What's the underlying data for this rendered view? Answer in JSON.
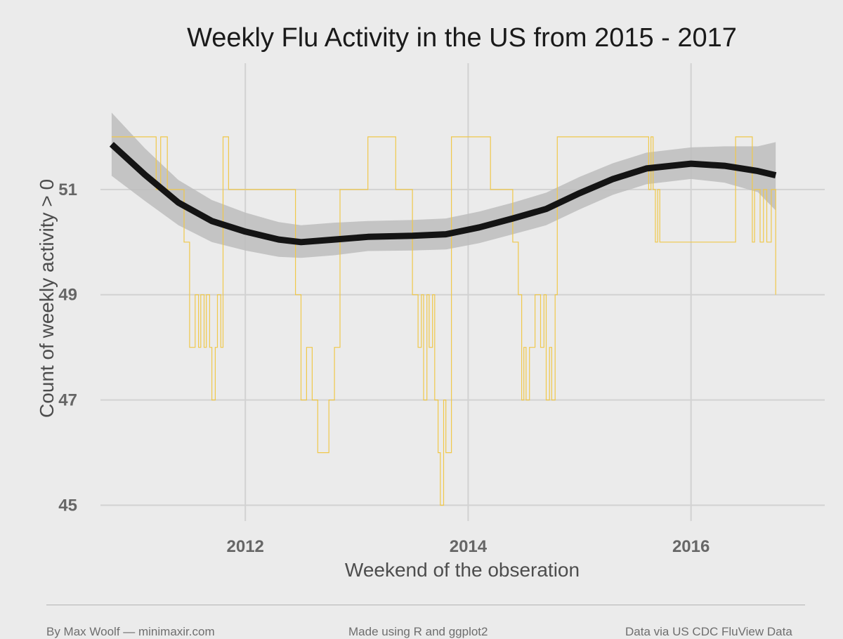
{
  "chart_data": {
    "type": "line",
    "title": "Weekly Flu Activity in the US from 2015 - 2017",
    "xlabel": "Weekend of the obseration",
    "ylabel": "Count of weekly activity > 0",
    "xlim": [
      2010.7,
      2017.2
    ],
    "ylim": [
      44.7,
      53.4
    ],
    "x_ticks": [
      2012,
      2014,
      2016
    ],
    "y_ticks": [
      45,
      47,
      49,
      51
    ],
    "grid": true,
    "colors": {
      "raw": "#f0c84a",
      "smooth": "#141414",
      "ribbon": "#bdbdbd",
      "background": "#ebebeb",
      "grid": "#d2d2d2"
    },
    "series": [
      {
        "kind": "raw",
        "x": [
          2010.8,
          2011.18,
          2011.2,
          2011.24,
          2011.26,
          2011.3,
          2011.45,
          2011.5,
          2011.55,
          2011.58,
          2011.6,
          2011.63,
          2011.65,
          2011.68,
          2011.7,
          2011.73,
          2011.75,
          2011.78,
          2011.8,
          2011.83,
          2011.85,
          2011.88,
          2011.9,
          2012.38,
          2012.45,
          2012.5,
          2012.55,
          2012.6,
          2012.65,
          2012.7,
          2012.75,
          2012.8,
          2012.85,
          2013.0,
          2013.1,
          2013.15,
          2013.35,
          2013.45,
          2013.5,
          2013.55,
          2013.58,
          2013.6,
          2013.63,
          2013.65,
          2013.68,
          2013.7,
          2013.73,
          2013.75,
          2013.78,
          2013.8,
          2013.85,
          2013.9,
          2014.15,
          2014.2,
          2014.35,
          2014.4,
          2014.45,
          2014.48,
          2014.5,
          2014.52,
          2014.55,
          2014.6,
          2014.65,
          2014.68,
          2014.7,
          2014.73,
          2014.75,
          2014.78,
          2014.8,
          2015.6,
          2015.62,
          2015.64,
          2015.66,
          2015.68,
          2015.7,
          2015.72,
          2016.4,
          2016.43,
          2016.46,
          2016.5,
          2016.55,
          2016.57,
          2016.6,
          2016.62,
          2016.65,
          2016.68,
          2016.72,
          2016.76
        ],
        "y": [
          52,
          52,
          51,
          52,
          52,
          51,
          50,
          48,
          49,
          48,
          49,
          48,
          49,
          48,
          47,
          48,
          49,
          48,
          52,
          52,
          51,
          51,
          51,
          51,
          49,
          47,
          48,
          47,
          46,
          46,
          47,
          48,
          51,
          51,
          52,
          52,
          51,
          51,
          49,
          48,
          49,
          47,
          49,
          48,
          49,
          47,
          46,
          45,
          47,
          46,
          52,
          52,
          52,
          51,
          51,
          50,
          49,
          47,
          48,
          47,
          48,
          49,
          48,
          49,
          47,
          48,
          47,
          49,
          52,
          52,
          51,
          52,
          51,
          50,
          51,
          50,
          52,
          52,
          52,
          52,
          50,
          51,
          51,
          50,
          51,
          50,
          51,
          49
        ],
        "steps": true
      },
      {
        "kind": "smooth",
        "x": [
          2010.8,
          2011.1,
          2011.4,
          2011.7,
          2012.0,
          2012.3,
          2012.5,
          2012.8,
          2013.1,
          2013.5,
          2013.8,
          2014.1,
          2014.4,
          2014.7,
          2015.0,
          2015.3,
          2015.6,
          2016.0,
          2016.3,
          2016.6,
          2016.76
        ],
        "y": [
          51.86,
          51.28,
          50.75,
          50.4,
          50.2,
          50.05,
          50.0,
          50.05,
          50.1,
          50.12,
          50.15,
          50.28,
          50.45,
          50.63,
          50.93,
          51.2,
          51.4,
          51.49,
          51.45,
          51.35,
          51.27
        ],
        "lower": [
          51.26,
          50.78,
          50.32,
          50.0,
          49.84,
          49.72,
          49.7,
          49.75,
          49.83,
          49.84,
          49.86,
          49.98,
          50.15,
          50.32,
          50.62,
          50.9,
          51.1,
          51.2,
          51.13,
          50.95,
          50.6
        ],
        "upper": [
          52.46,
          51.78,
          51.18,
          50.8,
          50.56,
          50.38,
          50.32,
          50.37,
          50.4,
          50.42,
          50.45,
          50.58,
          50.75,
          50.94,
          51.24,
          51.5,
          51.7,
          51.8,
          51.82,
          51.82,
          51.9
        ]
      }
    ]
  },
  "footer": {
    "left": "By Max Woolf — minimaxir.com",
    "middle": "Made using R and ggplot2",
    "right": "Data via US CDC FluView Data"
  }
}
